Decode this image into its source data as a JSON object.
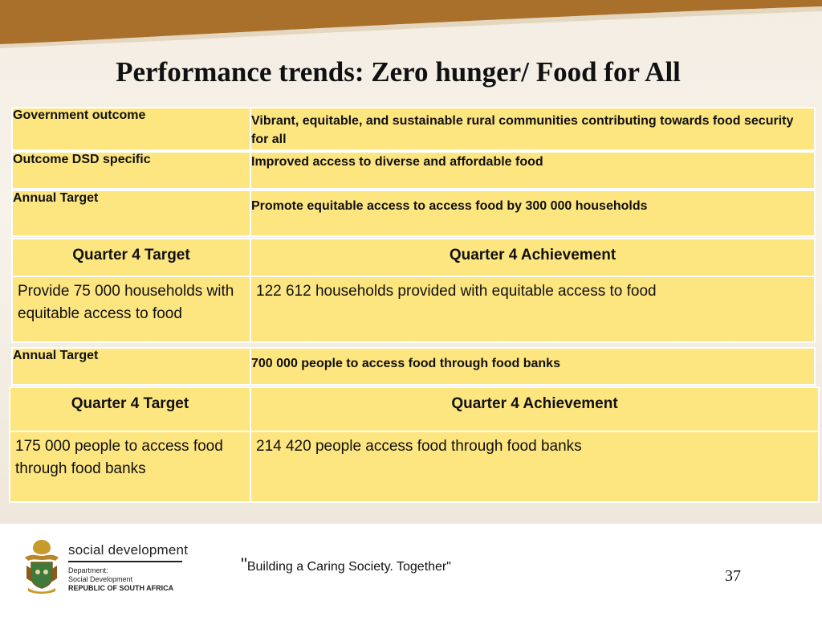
{
  "slide": {
    "title": "Performance trends: Zero hunger/ Food for All",
    "page_number": "37"
  },
  "rows": {
    "government_outcome": {
      "label": "Government outcome",
      "value": "Vibrant, equitable, and sustainable rural communities contributing towards food security for all"
    },
    "outcome_dsd": {
      "label": "Outcome DSD specific",
      "value": "Improved access to diverse and affordable food"
    },
    "annual_target_1": {
      "label": "Annual Target",
      "value": "Promote equitable access to access food by 300 000 households"
    },
    "quarter_1": {
      "target_header": "Quarter 4 Target",
      "achievement_header": "Quarter 4 Achievement",
      "target": "Provide 75 000 households with equitable access to food",
      "achievement": "122 612 households provided with equitable access to food"
    },
    "annual_target_2": {
      "label": "Annual Target",
      "value": "700 000  people to access food through food banks"
    },
    "quarter_2": {
      "target_header": "Quarter 4 Target",
      "achievement_header": "Quarter 4 Achievement",
      "target": "175 000 people to access food through food banks",
      "achievement": "214 420 people access food through food banks"
    }
  },
  "footer": {
    "quote_mark": "\"",
    "quote": "Building a Caring Society. Together\"",
    "logo_brand": "social development",
    "logo_line1": "Department:",
    "logo_line2": "Social Development",
    "logo_line3": "REPUBLIC OF SOUTH AFRICA"
  },
  "colors": {
    "cell_fill": "#fde580",
    "top_band": "#a8702a"
  }
}
